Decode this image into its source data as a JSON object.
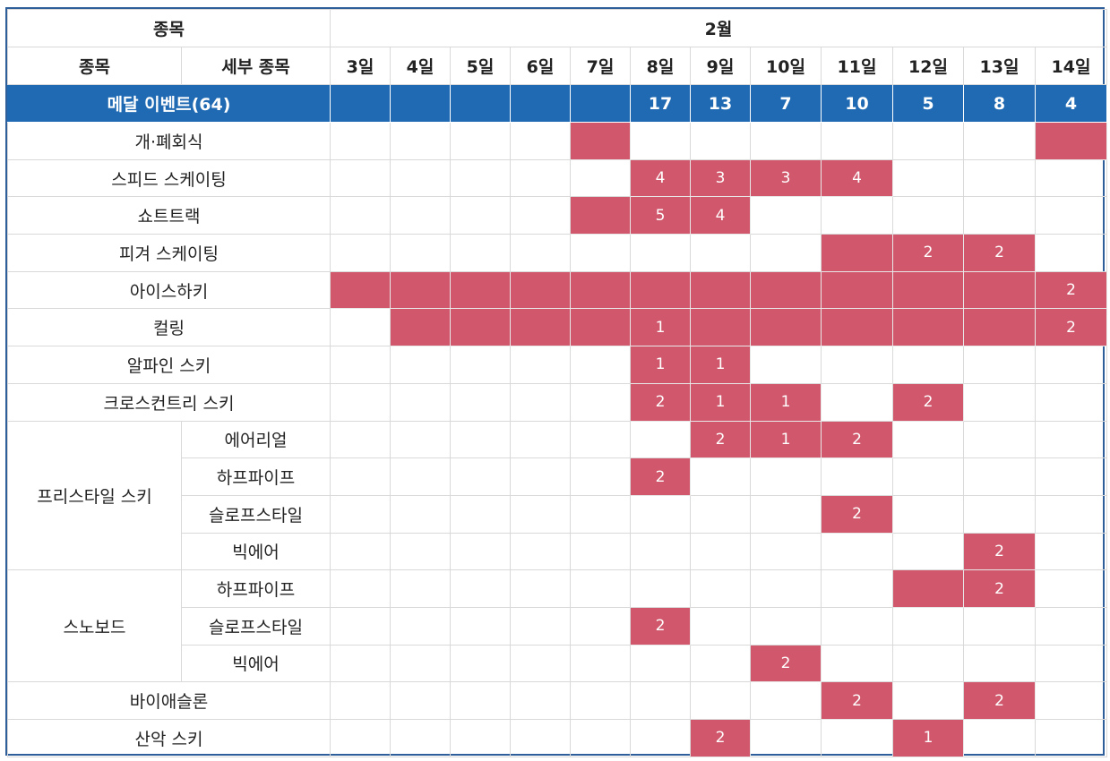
{
  "header": {
    "event_col": "종목",
    "month": "2월",
    "event_label": "종목",
    "sub_label": "세부 종목",
    "days": [
      "3일",
      "4일",
      "5일",
      "6일",
      "7일",
      "8일",
      "9일",
      "10일",
      "11일",
      "12일",
      "13일",
      "14일"
    ]
  },
  "medal_row": {
    "label": "메달 이벤트(64)",
    "counts": [
      "",
      "",
      "",
      "",
      "",
      "17",
      "13",
      "7",
      "10",
      "5",
      "8",
      "4"
    ]
  },
  "rows": [
    {
      "event": "개·폐회식",
      "sub": "",
      "cells": [
        0,
        0,
        0,
        0,
        1,
        0,
        0,
        0,
        0,
        0,
        0,
        1
      ],
      "values": [
        "",
        "",
        "",
        "",
        "",
        "",
        "",
        "",
        "",
        "",
        "",
        ""
      ]
    },
    {
      "event": "스피드 스케이팅",
      "sub": "",
      "cells": [
        0,
        0,
        0,
        0,
        0,
        1,
        1,
        1,
        1,
        0,
        0,
        0
      ],
      "values": [
        "",
        "",
        "",
        "",
        "",
        "4",
        "3",
        "3",
        "4",
        "",
        "",
        ""
      ]
    },
    {
      "event": "쇼트트랙",
      "sub": "",
      "cells": [
        0,
        0,
        0,
        0,
        1,
        1,
        1,
        0,
        0,
        0,
        0,
        0
      ],
      "values": [
        "",
        "",
        "",
        "",
        "",
        "5",
        "4",
        "",
        "",
        "",
        "",
        ""
      ]
    },
    {
      "event": "피겨 스케이팅",
      "sub": "",
      "cells": [
        0,
        0,
        0,
        0,
        0,
        0,
        0,
        0,
        1,
        1,
        1,
        0
      ],
      "values": [
        "",
        "",
        "",
        "",
        "",
        "",
        "",
        "",
        "",
        "2",
        "2",
        ""
      ]
    },
    {
      "event": "아이스하키",
      "sub": "",
      "cells": [
        1,
        1,
        1,
        1,
        1,
        1,
        1,
        1,
        1,
        1,
        1,
        1
      ],
      "values": [
        "",
        "",
        "",
        "",
        "",
        "",
        "",
        "",
        "",
        "",
        "",
        "2"
      ]
    },
    {
      "event": "컬링",
      "sub": "",
      "cells": [
        0,
        1,
        1,
        1,
        1,
        1,
        1,
        1,
        1,
        1,
        1,
        1
      ],
      "values": [
        "",
        "",
        "",
        "",
        "",
        "1",
        "",
        "",
        "",
        "",
        "",
        "2"
      ]
    },
    {
      "event": "알파인 스키",
      "sub": "",
      "cells": [
        0,
        0,
        0,
        0,
        0,
        1,
        1,
        0,
        0,
        0,
        0,
        0
      ],
      "values": [
        "",
        "",
        "",
        "",
        "",
        "1",
        "1",
        "",
        "",
        "",
        "",
        ""
      ]
    },
    {
      "event": "크로스컨트리 스키",
      "sub": "",
      "cells": [
        0,
        0,
        0,
        0,
        0,
        1,
        1,
        1,
        0,
        1,
        0,
        0
      ],
      "values": [
        "",
        "",
        "",
        "",
        "",
        "2",
        "1",
        "1",
        "",
        "2",
        "",
        ""
      ]
    },
    {
      "event": "프리스타일 스키",
      "sub": "에어리얼",
      "group_start": true,
      "group_span": 4,
      "cells": [
        0,
        0,
        0,
        0,
        0,
        0,
        1,
        1,
        1,
        0,
        0,
        0
      ],
      "values": [
        "",
        "",
        "",
        "",
        "",
        "",
        "2",
        "1",
        "2",
        "",
        "",
        ""
      ]
    },
    {
      "event": "",
      "sub": "하프파이프",
      "cells": [
        0,
        0,
        0,
        0,
        0,
        1,
        0,
        0,
        0,
        0,
        0,
        0
      ],
      "values": [
        "",
        "",
        "",
        "",
        "",
        "2",
        "",
        "",
        "",
        "",
        "",
        ""
      ]
    },
    {
      "event": "",
      "sub": "슬로프스타일",
      "cells": [
        0,
        0,
        0,
        0,
        0,
        0,
        0,
        0,
        1,
        0,
        0,
        0
      ],
      "values": [
        "",
        "",
        "",
        "",
        "",
        "",
        "",
        "",
        "2",
        "",
        "",
        ""
      ]
    },
    {
      "event": "",
      "sub": "빅에어",
      "cells": [
        0,
        0,
        0,
        0,
        0,
        0,
        0,
        0,
        0,
        0,
        1,
        0
      ],
      "values": [
        "",
        "",
        "",
        "",
        "",
        "",
        "",
        "",
        "",
        "",
        "2",
        ""
      ]
    },
    {
      "event": "스노보드",
      "sub": "하프파이프",
      "group_start": true,
      "group_span": 3,
      "cells": [
        0,
        0,
        0,
        0,
        0,
        0,
        0,
        0,
        0,
        1,
        1,
        0
      ],
      "values": [
        "",
        "",
        "",
        "",
        "",
        "",
        "",
        "",
        "",
        "",
        "2",
        ""
      ]
    },
    {
      "event": "",
      "sub": "슬로프스타일",
      "cells": [
        0,
        0,
        0,
        0,
        0,
        1,
        0,
        0,
        0,
        0,
        0,
        0
      ],
      "values": [
        "",
        "",
        "",
        "",
        "",
        "2",
        "",
        "",
        "",
        "",
        "",
        ""
      ]
    },
    {
      "event": "",
      "sub": "빅에어",
      "cells": [
        0,
        0,
        0,
        0,
        0,
        0,
        0,
        1,
        0,
        0,
        0,
        0
      ],
      "values": [
        "",
        "",
        "",
        "",
        "",
        "",
        "",
        "2",
        "",
        "",
        "",
        ""
      ]
    },
    {
      "event": "바이애슬론",
      "sub": "",
      "cells": [
        0,
        0,
        0,
        0,
        0,
        0,
        0,
        0,
        1,
        0,
        1,
        0
      ],
      "values": [
        "",
        "",
        "",
        "",
        "",
        "",
        "",
        "",
        "2",
        "",
        "2",
        ""
      ]
    },
    {
      "event": "산악 스키",
      "sub": "",
      "cells": [
        0,
        0,
        0,
        0,
        0,
        0,
        1,
        0,
        0,
        1,
        0,
        0
      ],
      "values": [
        "",
        "",
        "",
        "",
        "",
        "",
        "2",
        "",
        "",
        "1",
        "",
        ""
      ]
    }
  ],
  "colors": {
    "header_blue": "#1f6ab3",
    "active": "#d1586c",
    "border": "#2f5f9a"
  }
}
